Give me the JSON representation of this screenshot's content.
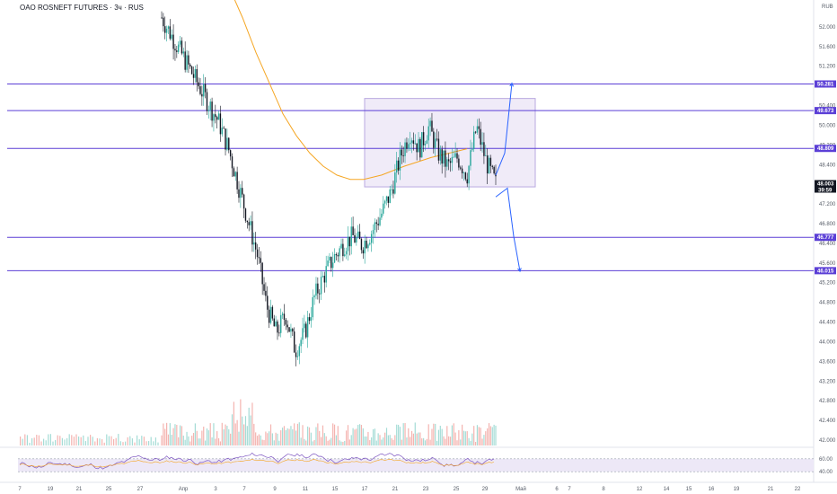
{
  "header": {
    "title": "OAO ROSNEFT FUTURES · 3ч · RUS"
  },
  "price_axis": {
    "currency": "RUB",
    "labels": [
      "52.000",
      "51.600",
      "51.200",
      "50.800",
      "50.400",
      "50.000",
      "49.200",
      "48.400",
      "47.600",
      "47.200",
      "46.800",
      "46.400",
      "45.600",
      "45.200",
      "44.800",
      "44.400",
      "44.000",
      "43.600",
      "43.200",
      "42.800",
      "42.400",
      "42.000"
    ],
    "current_price": "48.003",
    "countdown": "39:59"
  },
  "time_axis": {
    "labels": [
      "7",
      "19",
      "21",
      "25",
      "27",
      "Апр",
      "3",
      "7",
      "9",
      "11",
      "15",
      "17",
      "21",
      "23",
      "25",
      "29",
      "Май",
      "6",
      "7",
      "8",
      "12",
      "14",
      "15",
      "16",
      "19",
      "21",
      "22"
    ]
  },
  "rsi_axis": {
    "labels": [
      "60.00",
      "40.00"
    ]
  },
  "levels": [
    {
      "label": "50.281",
      "value": 50.281,
      "color": "#5b3fd6"
    },
    {
      "label": "49.673",
      "value": 49.673,
      "color": "#5b3fd6"
    },
    {
      "label": "48.809",
      "value": 48.809,
      "color": "#5b3fd6"
    },
    {
      "label": "46.777",
      "value": 46.777,
      "color": "#5b3fd6"
    },
    {
      "label": "46.015",
      "value": 46.015,
      "color": "#5b3fd6"
    }
  ],
  "colors": {
    "up": "#26a69a",
    "down": "#131722",
    "ma": "#f5a623",
    "level": "#5b3fd6",
    "box": "#ede8f7",
    "arrow": "#2962ff"
  },
  "chart_data": {
    "type": "candlestick",
    "title": "OAO ROSNEFT FUTURES · 3ч · RUS",
    "ylim": [
      42.0,
      52.2
    ],
    "x": [
      "7",
      "19",
      "21",
      "25",
      "27",
      "Апр",
      "3",
      "7",
      "9",
      "11",
      "15",
      "17",
      "21",
      "23",
      "25",
      "29"
    ],
    "close_path": [
      51.8,
      51.4,
      51.0,
      50.6,
      50.2,
      49.8,
      49.4,
      48.8,
      48.0,
      47.2,
      46.4,
      45.2,
      44.6,
      45.0,
      44.2,
      44.6,
      45.4,
      45.9,
      46.3,
      46.6,
      46.8,
      46.6,
      46.9,
      47.3,
      47.8,
      48.6,
      49.2,
      48.8,
      49.3,
      48.7,
      48.4,
      48.6,
      48.2,
      49.3,
      48.5,
      48.0
    ],
    "ma_path": [
      52.5,
      51.8,
      51.0,
      50.3,
      49.6,
      49.1,
      48.7,
      48.4,
      48.2,
      48.1,
      48.1,
      48.2,
      48.4,
      48.6,
      48.8
    ],
    "range_box": {
      "from": "17",
      "to": "29+",
      "high": 49.95,
      "low": 47.93
    },
    "horizontal_levels": [
      50.281,
      49.673,
      48.809,
      46.777,
      46.015
    ],
    "rsi": {
      "upper": 60.0,
      "lower": 40.0
    }
  }
}
